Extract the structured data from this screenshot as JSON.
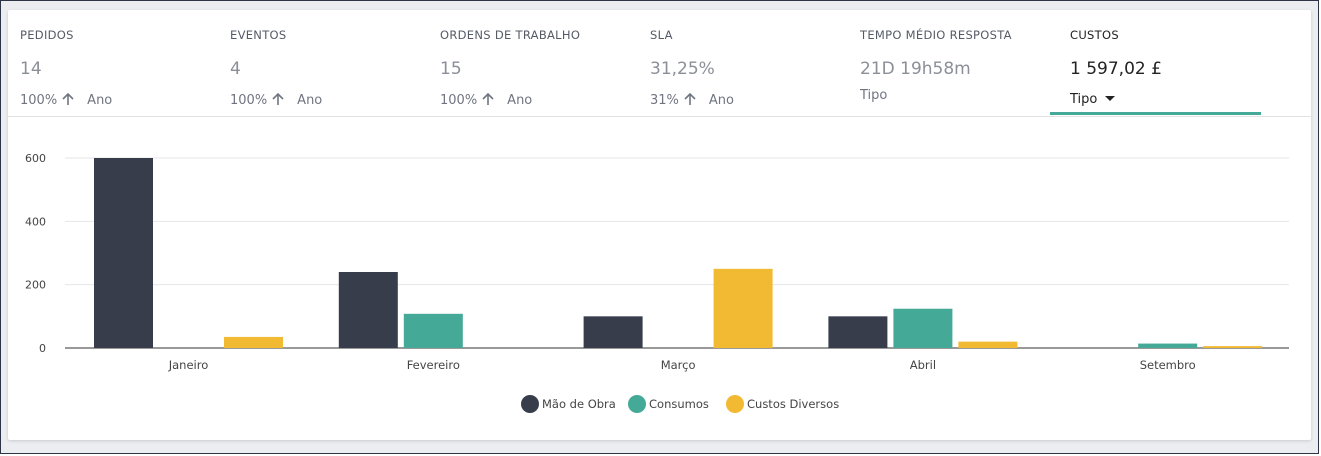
{
  "kpis": [
    {
      "title": "PEDIDOS",
      "value": "14",
      "pct": "100%",
      "period": "Ano"
    },
    {
      "title": "EVENTOS",
      "value": "4",
      "pct": "100%",
      "period": "Ano"
    },
    {
      "title": "ORDENS DE TRABALHO",
      "value": "15",
      "pct": "100%",
      "period": "Ano"
    },
    {
      "title": "SLA",
      "value": "31,25%",
      "pct": "31%",
      "period": "Ano"
    },
    {
      "title": "TEMPO MÉDIO RESPOSTA",
      "value": "21D 19h58m",
      "period": "Tipo"
    },
    {
      "title": "CUSTOS",
      "value": "1 597,02 £",
      "period": "Tipo"
    }
  ],
  "colors": {
    "mao_de_obra": "#383d4c",
    "consumos": "#45a997",
    "custos_diversos": "#f2b933",
    "accent": "#45a997"
  },
  "chart_data": {
    "type": "bar",
    "categories": [
      "Janeiro",
      "Fevereiro",
      "Março",
      "Abril",
      "Setembro"
    ],
    "series": [
      {
        "name": "Mão de Obra",
        "values": [
          600,
          240,
          100,
          100,
          0
        ]
      },
      {
        "name": "Consumos",
        "values": [
          0,
          108,
          0,
          124,
          14
        ]
      },
      {
        "name": "Custos Diversos",
        "values": [
          35,
          0,
          250,
          20,
          6
        ]
      }
    ],
    "yticks": [
      0,
      200,
      400,
      600
    ],
    "ylim": [
      0,
      600
    ],
    "grid": true,
    "legend": "bottom"
  }
}
